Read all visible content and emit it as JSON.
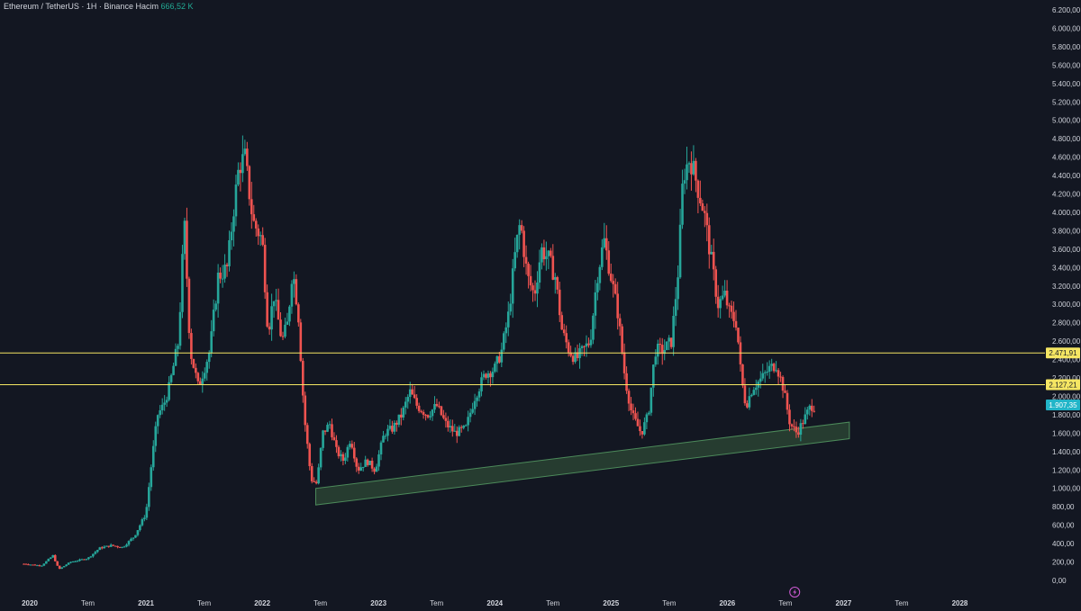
{
  "header": {
    "symbol": "Ethereum / TetherUS",
    "interval": "1H",
    "exchange": "Binance",
    "volume_label": "Hacim",
    "volume_value": "666,52 K"
  },
  "colors": {
    "background": "#131722",
    "bull": "#26a69a",
    "bear": "#ef5350",
    "level_line": "#f5e663",
    "zone_fill": "#2e4a36",
    "zone_border": "#4c8a5a",
    "last_price_bg": "#22b5c8"
  },
  "icons": {
    "bolt": "lightning-icon"
  },
  "chart_data": {
    "type": "candlestick",
    "y_axis": {
      "range": [
        0,
        6200
      ],
      "ticks": [
        "6.200,00",
        "6.000,00",
        "5.800,00",
        "5.600,00",
        "5.400,00",
        "5.200,00",
        "5.000,00",
        "4.800,00",
        "4.600,00",
        "4.400,00",
        "4.200,00",
        "4.000,00",
        "3.800,00",
        "3.600,00",
        "3.400,00",
        "3.200,00",
        "3.000,00",
        "2.800,00",
        "2.600,00",
        "2.400,00",
        "2.200,00",
        "2.000,00",
        "1.800,00",
        "1.600,00",
        "1.400,00",
        "1.200,00",
        "1.000,00",
        "800,00",
        "600,00",
        "400,00",
        "200,00",
        "0,00"
      ],
      "tick_values": [
        6200,
        6000,
        5800,
        5600,
        5400,
        5200,
        5000,
        4800,
        4600,
        4400,
        4200,
        4000,
        3800,
        3600,
        3400,
        3200,
        3000,
        2800,
        2600,
        2400,
        2200,
        2000,
        1800,
        1600,
        1400,
        1200,
        1000,
        800,
        600,
        400,
        200,
        0
      ]
    },
    "x_axis": {
      "range": [
        2020.0,
        2028.5
      ],
      "ticks": [
        {
          "label": "2020",
          "x": 2020.0
        },
        {
          "label": "Tem",
          "x": 2020.5
        },
        {
          "label": "2021",
          "x": 2021.0
        },
        {
          "label": "Tem",
          "x": 2021.5
        },
        {
          "label": "2022",
          "x": 2022.0
        },
        {
          "label": "Tem",
          "x": 2022.5
        },
        {
          "label": "2023",
          "x": 2023.0
        },
        {
          "label": "Tem",
          "x": 2023.5
        },
        {
          "label": "2024",
          "x": 2024.0
        },
        {
          "label": "Tem",
          "x": 2024.5
        },
        {
          "label": "2025",
          "x": 2025.0
        },
        {
          "label": "Tem",
          "x": 2025.5
        },
        {
          "label": "2026",
          "x": 2026.0
        },
        {
          "label": "Tem",
          "x": 2026.5
        },
        {
          "label": "2027",
          "x": 2027.0
        },
        {
          "label": "Tem",
          "x": 2027.5
        },
        {
          "label": "2028",
          "x": 2028.0
        }
      ]
    },
    "horizontal_levels": [
      {
        "value": 2471.91,
        "label": "2.471,91"
      },
      {
        "value": 2127.21,
        "label": "2.127,21"
      }
    ],
    "last_price": {
      "value": 1907.35,
      "label": "1.907,35"
    },
    "support_zone": {
      "start": {
        "x": 2022.46,
        "low": 820,
        "high": 1000
      },
      "end": {
        "x": 2027.05,
        "low": 1540,
        "high": 1720
      }
    },
    "price_path": [
      [
        2019.95,
        180
      ],
      [
        2020.1,
        160
      ],
      [
        2020.2,
        270
      ],
      [
        2020.25,
        120
      ],
      [
        2020.35,
        200
      ],
      [
        2020.5,
        240
      ],
      [
        2020.6,
        350
      ],
      [
        2020.7,
        380
      ],
      [
        2020.8,
        360
      ],
      [
        2020.9,
        480
      ],
      [
        2021.0,
        730
      ],
      [
        2021.05,
        1300
      ],
      [
        2021.1,
        1800
      ],
      [
        2021.15,
        1900
      ],
      [
        2021.2,
        2100
      ],
      [
        2021.28,
        2600
      ],
      [
        2021.33,
        3900
      ],
      [
        2021.38,
        2500
      ],
      [
        2021.45,
        2100
      ],
      [
        2021.5,
        2300
      ],
      [
        2021.55,
        2500
      ],
      [
        2021.62,
        3300
      ],
      [
        2021.7,
        3400
      ],
      [
        2021.75,
        4000
      ],
      [
        2021.8,
        4500
      ],
      [
        2021.85,
        4600
      ],
      [
        2021.92,
        3900
      ],
      [
        2022.0,
        3700
      ],
      [
        2022.05,
        2700
      ],
      [
        2022.1,
        3100
      ],
      [
        2022.17,
        2600
      ],
      [
        2022.22,
        2800
      ],
      [
        2022.26,
        3400
      ],
      [
        2022.31,
        2900
      ],
      [
        2022.36,
        1800
      ],
      [
        2022.42,
        1100
      ],
      [
        2022.47,
        1050
      ],
      [
        2022.52,
        1600
      ],
      [
        2022.58,
        1700
      ],
      [
        2022.64,
        1400
      ],
      [
        2022.7,
        1300
      ],
      [
        2022.76,
        1550
      ],
      [
        2022.82,
        1200
      ],
      [
        2022.9,
        1300
      ],
      [
        2022.97,
        1200
      ],
      [
        2023.05,
        1600
      ],
      [
        2023.12,
        1650
      ],
      [
        2023.2,
        1800
      ],
      [
        2023.27,
        2050
      ],
      [
        2023.33,
        1900
      ],
      [
        2023.42,
        1800
      ],
      [
        2023.5,
        1900
      ],
      [
        2023.58,
        1700
      ],
      [
        2023.66,
        1600
      ],
      [
        2023.75,
        1650
      ],
      [
        2023.83,
        2000
      ],
      [
        2023.92,
        2250
      ],
      [
        2024.0,
        2300
      ],
      [
        2024.06,
        2500
      ],
      [
        2024.12,
        2900
      ],
      [
        2024.18,
        3600
      ],
      [
        2024.22,
        3900
      ],
      [
        2024.28,
        3300
      ],
      [
        2024.34,
        3100
      ],
      [
        2024.4,
        3600
      ],
      [
        2024.46,
        3500
      ],
      [
        2024.52,
        3300
      ],
      [
        2024.58,
        2700
      ],
      [
        2024.64,
        2500
      ],
      [
        2024.7,
        2400
      ],
      [
        2024.76,
        2500
      ],
      [
        2024.82,
        2600
      ],
      [
        2024.88,
        3300
      ],
      [
        2024.94,
        3700
      ],
      [
        2025.0,
        3300
      ],
      [
        2025.06,
        2900
      ],
      [
        2025.12,
        2200
      ],
      [
        2025.18,
        1800
      ],
      [
        2025.26,
        1600
      ],
      [
        2025.32,
        1800
      ],
      [
        2025.38,
        2500
      ],
      [
        2025.45,
        2500
      ],
      [
        2025.52,
        2600
      ],
      [
        2025.58,
        3400
      ],
      [
        2025.62,
        4400
      ],
      [
        2025.68,
        4600
      ],
      [
        2025.74,
        4300
      ],
      [
        2025.8,
        4000
      ],
      [
        2025.86,
        3500
      ],
      [
        2025.92,
        3000
      ],
      [
        2025.98,
        3100
      ],
      [
        2026.02,
        2900
      ],
      [
        2026.08,
        2800
      ],
      [
        2026.12,
        2200
      ],
      [
        2026.16,
        1900
      ],
      [
        2026.22,
        2100
      ],
      [
        2026.3,
        2200
      ],
      [
        2026.36,
        2300
      ],
      [
        2026.42,
        2350
      ],
      [
        2026.48,
        2100
      ],
      [
        2026.54,
        1700
      ],
      [
        2026.6,
        1600
      ],
      [
        2026.66,
        1750
      ],
      [
        2026.72,
        1900
      ],
      [
        2026.76,
        1880
      ]
    ]
  }
}
